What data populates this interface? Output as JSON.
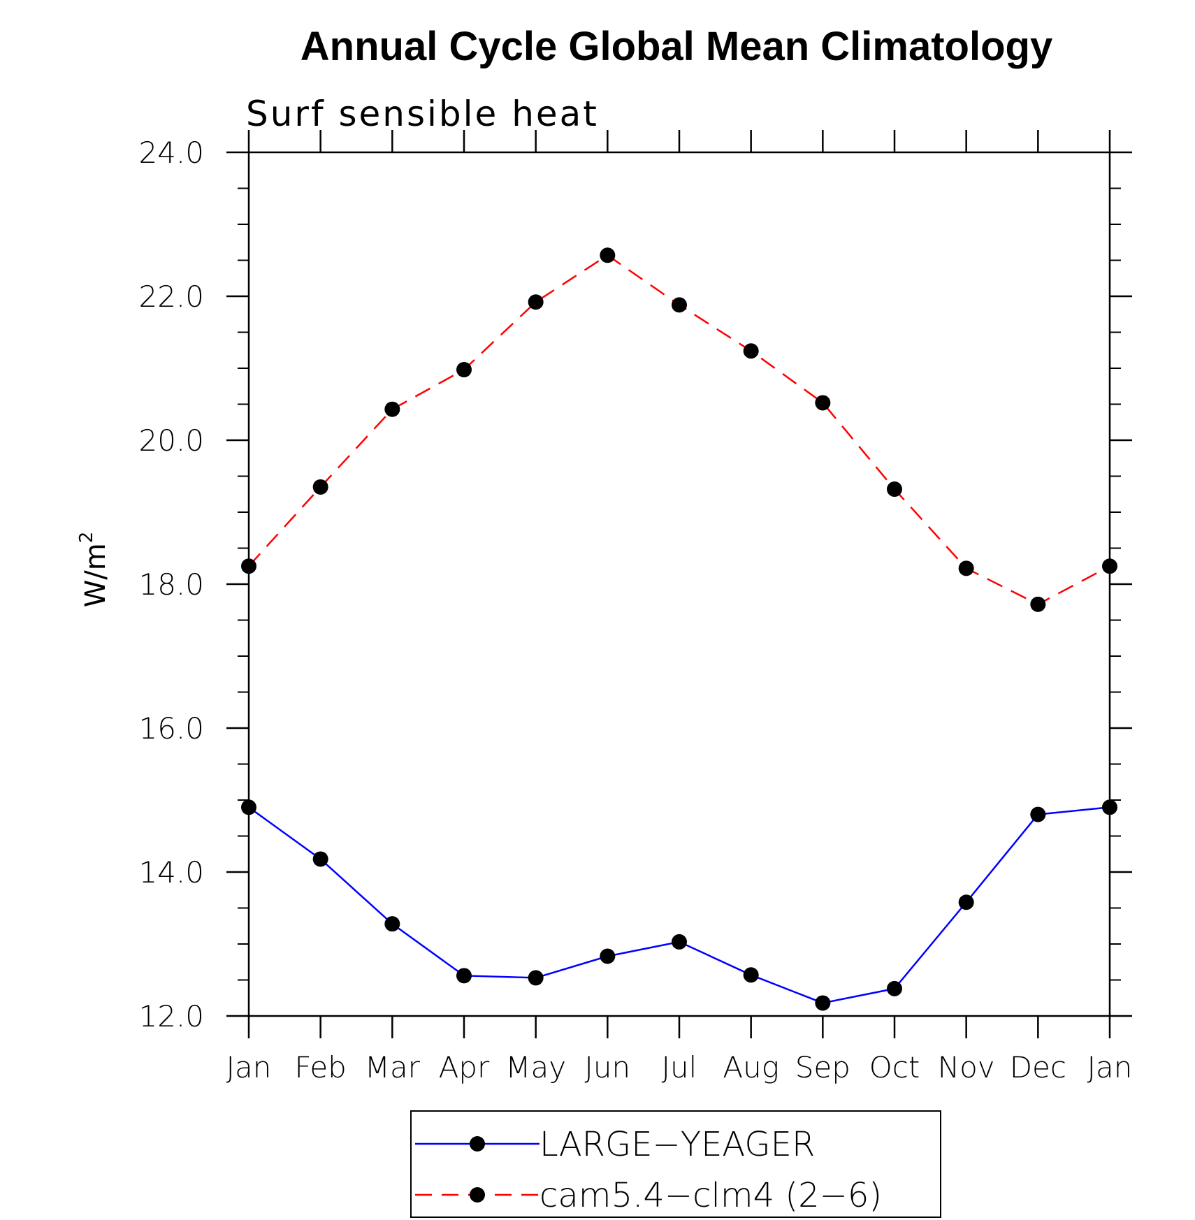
{
  "chart_data": {
    "type": "line",
    "title": "Annual Cycle Global Mean Climatology",
    "subtitle": "Surf  sensible  heat",
    "ylabel": "W/m",
    "ylabel_sup": "2",
    "xlabel": "",
    "categories": [
      "Jan",
      "Feb",
      "Mar",
      "Apr",
      "May",
      "Jun",
      "Jul",
      "Aug",
      "Sep",
      "Oct",
      "Nov",
      "Dec",
      "Jan"
    ],
    "ylim": [
      12.0,
      24.0
    ],
    "yticks": [
      "12.0",
      "14.0",
      "16.0",
      "18.0",
      "20.0",
      "22.0",
      "24.0"
    ],
    "grid": false,
    "legend_position": "bottom",
    "series": [
      {
        "name": "LARGE−YEAGER",
        "color": "#0000ff",
        "style": "solid",
        "marker": "filled-circle",
        "values": [
          14.9,
          14.18,
          13.28,
          12.56,
          12.53,
          12.83,
          13.03,
          12.57,
          12.18,
          12.38,
          13.58,
          14.8,
          14.9
        ]
      },
      {
        "name": "cam5.4−clm4 (2−6)",
        "color": "#ff0000",
        "style": "dashed",
        "marker": "filled-circle",
        "values": [
          18.25,
          19.35,
          20.43,
          20.98,
          21.92,
          22.57,
          21.88,
          21.24,
          20.52,
          19.32,
          18.22,
          17.72,
          18.25
        ]
      }
    ]
  }
}
